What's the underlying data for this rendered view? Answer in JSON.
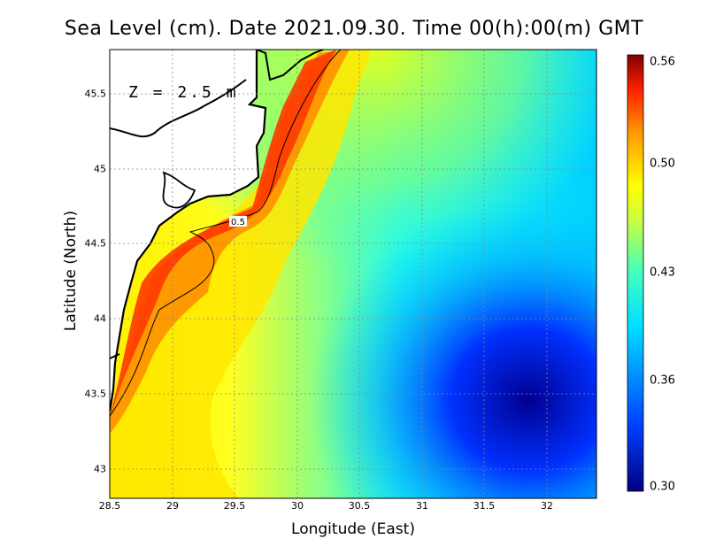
{
  "title": "Sea Level (cm). Date 2021.09.30. Time 00(h):00(m) GMT",
  "annotation": "Z = 2.5 m",
  "contour_label": "0.5",
  "x_axis": {
    "label": "Longitude (East)",
    "ticks": [
      "28.5",
      "29",
      "29.5",
      "30",
      "30.5",
      "31",
      "31.5",
      "32"
    ]
  },
  "y_axis": {
    "label": "Latitude (North)",
    "ticks": [
      "45.5",
      "45",
      "44.5",
      "44",
      "43.5",
      "43"
    ]
  },
  "colorbar": {
    "ticks": [
      "0.56",
      "0.50",
      "0.43",
      "0.36",
      "0.30"
    ],
    "range": [
      0.3,
      0.56
    ],
    "colors": [
      "#000080",
      "#0040ff",
      "#00d8ff",
      "#00ffe0",
      "#a0ff60",
      "#ffff00",
      "#ffa000",
      "#ff2000",
      "#800000"
    ]
  },
  "map_data": {
    "lon_range": [
      28.5,
      32.4
    ],
    "lat_range": [
      42.8,
      45.8
    ],
    "field": "sea level",
    "grid": true,
    "contour_levels": [
      0.5
    ]
  }
}
